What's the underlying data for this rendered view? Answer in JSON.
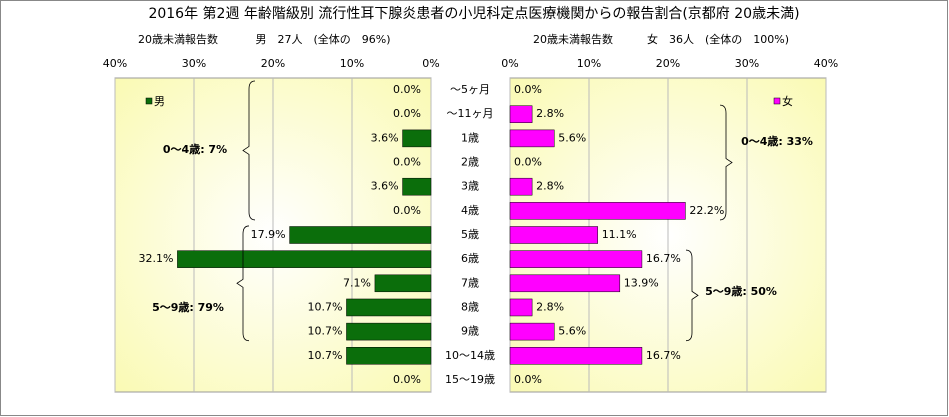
{
  "chart_data": {
    "type": "butterfly_bar",
    "title": "2016年 第2週 年齢階級別 流行性耳下腺炎患者の小児科定点医療機関からの報告割合(京都府 20歳未満)",
    "categories": [
      "～5ヶ月",
      "～11ヶ月",
      "1歳",
      "2歳",
      "3歳",
      "4歳",
      "5歳",
      "6歳",
      "7歳",
      "8歳",
      "9歳",
      "10～14歳",
      "15～19歳"
    ],
    "series": [
      {
        "name": "男",
        "color": "#0b6e0b",
        "subtitle": "20歳未満報告数",
        "count_label": "男　27人　(全体の　96%)",
        "values": [
          0,
          0,
          3.6,
          0,
          3.6,
          0,
          17.9,
          32.1,
          7.1,
          10.7,
          10.7,
          10.7,
          0
        ],
        "value_labels": [
          "0.0%",
          "0.0%",
          "3.6%",
          "0.0%",
          "3.6%",
          "0.0%",
          "17.9%",
          "32.1%",
          "7.1%",
          "10.7%",
          "10.7%",
          "10.7%",
          "0.0%"
        ],
        "xlim": [
          40,
          0
        ],
        "xticks": [
          {
            "value": 40,
            "label": "40%"
          },
          {
            "value": 30,
            "label": "30%"
          },
          {
            "value": 20,
            "label": "20%"
          },
          {
            "value": 10,
            "label": "10%"
          },
          {
            "value": 0,
            "label": "0%"
          }
        ],
        "annotations": [
          "0～4歳: 7%",
          "5～9歳: 79%"
        ]
      },
      {
        "name": "女",
        "color": "#ff00ff",
        "subtitle": "20歳未満報告数",
        "count_label": "女　36人　(全体の　100%)",
        "values": [
          0,
          2.8,
          5.6,
          0,
          2.8,
          22.2,
          11.1,
          16.7,
          13.9,
          2.8,
          5.6,
          16.7,
          0
        ],
        "value_labels": [
          "0.0%",
          "2.8%",
          "5.6%",
          "0.0%",
          "2.8%",
          "22.2%",
          "11.1%",
          "16.7%",
          "13.9%",
          "2.8%",
          "5.6%",
          "16.7%",
          "0.0%"
        ],
        "xlim": [
          0,
          40
        ],
        "xticks": [
          {
            "value": 0,
            "label": "0%"
          },
          {
            "value": 10,
            "label": "10%"
          },
          {
            "value": 20,
            "label": "20%"
          },
          {
            "value": 30,
            "label": "30%"
          },
          {
            "value": 40,
            "label": "40%"
          }
        ],
        "annotations": [
          "0～4歳: 33%",
          "5～9歳: 50%"
        ]
      }
    ],
    "grid": true
  }
}
